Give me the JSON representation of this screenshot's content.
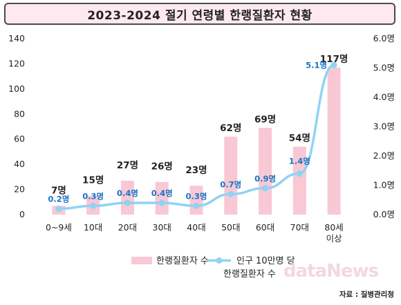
{
  "title": "2023-2024 절기 연령별 한랭질환자 현황",
  "source": "자료 : 질병관리청",
  "watermark": "dataNews",
  "colors": {
    "bar": "#f8c8d4",
    "line": "#8fd3f4",
    "rate_label": "#1a73c7"
  },
  "chart_data": {
    "type": "bar",
    "categories": [
      "0~9세",
      "10대",
      "20대",
      "30대",
      "40대",
      "50대",
      "60대",
      "70대",
      "80세\n이상"
    ],
    "series": [
      {
        "name": "한랭질환자 수",
        "type": "bar",
        "axis": "left",
        "values": [
          7,
          15,
          27,
          26,
          23,
          62,
          69,
          54,
          117
        ],
        "labels": [
          "7명",
          "15명",
          "27명",
          "26명",
          "23명",
          "62명",
          "69명",
          "54명",
          "117명"
        ]
      },
      {
        "name": "인구 10만명 당\n한랭질환자 수",
        "type": "line",
        "axis": "right",
        "values": [
          0.2,
          0.3,
          0.4,
          0.4,
          0.3,
          0.7,
          0.9,
          1.4,
          5.1
        ],
        "labels": [
          "0.2명",
          "0.3명",
          "0.4명",
          "0.4명",
          "0.3명",
          "0.7명",
          "0.9명",
          "1.4명",
          "5.1명"
        ]
      }
    ],
    "y_left": {
      "ticks": [
        "0",
        "20",
        "40",
        "60",
        "80",
        "100",
        "120",
        "140"
      ],
      "ylim": [
        0,
        140
      ]
    },
    "y_right": {
      "ticks": [
        "0.0명",
        "1.0명",
        "2.0명",
        "3.0명",
        "4.0명",
        "5.0명",
        "6.0명"
      ],
      "ylim": [
        0,
        6
      ]
    },
    "legend": {
      "placement": "bottom"
    },
    "grid": false
  }
}
